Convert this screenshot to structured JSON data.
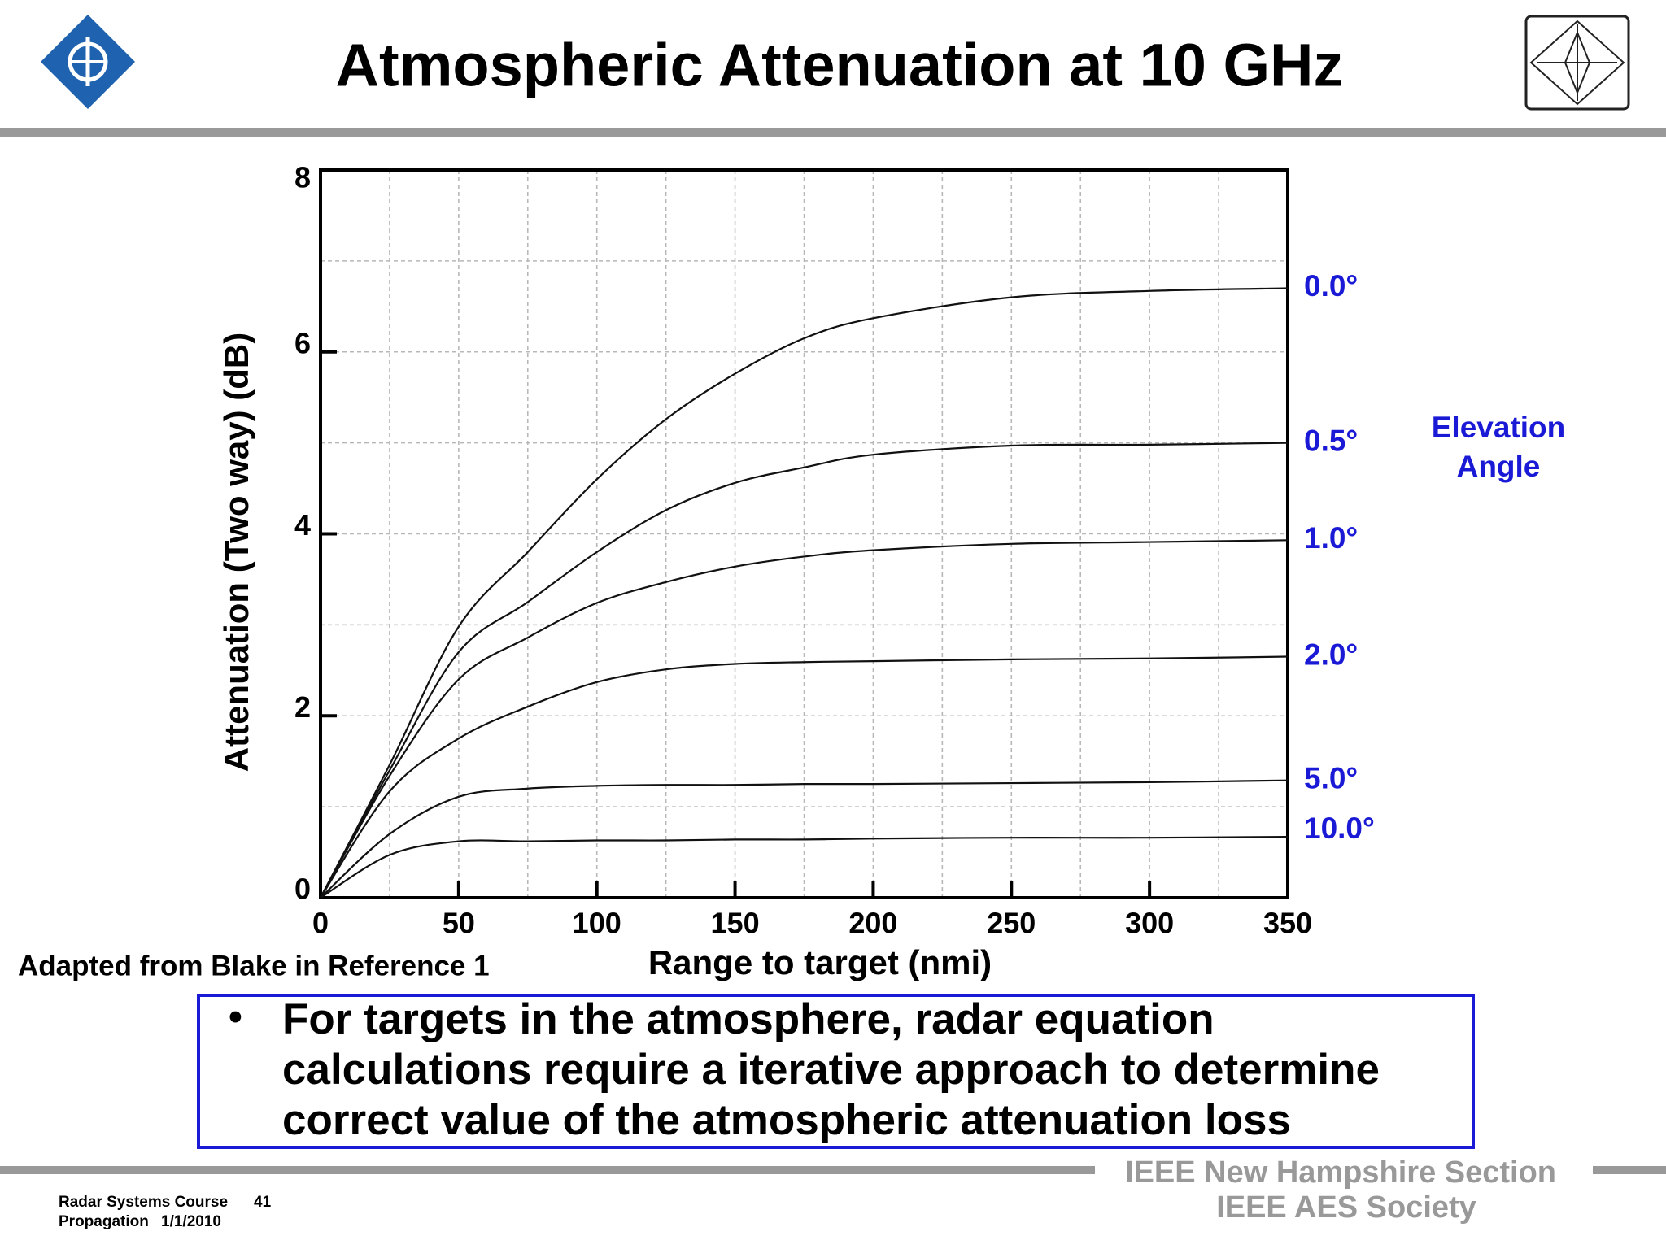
{
  "header": {
    "title": "Atmospheric Attenuation at 10 GHz"
  },
  "chart_data": {
    "type": "line",
    "x_label": "Range to target (nmi)",
    "y_label": "Attenuation (Two way) (dB)",
    "legend_title": [
      "Elevation",
      "Angle"
    ],
    "label_color": "#1a1ad6",
    "x": [
      0,
      25,
      50,
      75,
      100,
      125,
      150,
      175,
      200,
      250,
      300,
      350
    ],
    "series": [
      {
        "name": "0.0°",
        "color": "#111111",
        "values": [
          0,
          1.46,
          2.98,
          3.8,
          4.6,
          5.26,
          5.76,
          6.15,
          6.37,
          6.6,
          6.67,
          6.7
        ]
      },
      {
        "name": "0.5°",
        "color": "#111111",
        "values": [
          0,
          1.4,
          2.7,
          3.25,
          3.8,
          4.26,
          4.56,
          4.73,
          4.87,
          4.97,
          4.98,
          5.0
        ]
      },
      {
        "name": "1.0°",
        "color": "#111111",
        "values": [
          0,
          1.34,
          2.4,
          2.86,
          3.24,
          3.47,
          3.64,
          3.75,
          3.82,
          3.89,
          3.91,
          3.93
        ]
      },
      {
        "name": "2.0°",
        "color": "#111111",
        "values": [
          0,
          1.17,
          1.75,
          2.1,
          2.37,
          2.51,
          2.57,
          2.59,
          2.6,
          2.62,
          2.63,
          2.65
        ]
      },
      {
        "name": "5.0°",
        "color": "#111111",
        "values": [
          0,
          0.7,
          1.11,
          1.2,
          1.23,
          1.24,
          1.24,
          1.25,
          1.25,
          1.26,
          1.27,
          1.29
        ]
      },
      {
        "name": "10.0°",
        "color": "#111111",
        "values": [
          0,
          0.47,
          0.62,
          0.62,
          0.63,
          0.63,
          0.64,
          0.64,
          0.65,
          0.66,
          0.66,
          0.67
        ]
      }
    ],
    "xlim": [
      0,
      350
    ],
    "xticks": [
      0,
      50,
      100,
      150,
      200,
      250,
      300,
      350
    ],
    "x_minor_ticks": [
      25,
      75,
      125,
      175,
      225,
      275,
      325
    ],
    "ylim": [
      0,
      8
    ],
    "yticks": [
      0,
      2,
      4,
      6,
      8
    ],
    "y_minor_ticks": [
      1,
      3,
      5,
      7
    ],
    "grid": true
  },
  "source_note": "Adapted from Blake in Reference 1",
  "bullet": {
    "lines": [
      "For targets in the atmosphere, radar equation",
      "calculations require a iterative approach to determine",
      "correct value of the atmospheric attenuation loss"
    ]
  },
  "footer": {
    "course": "Radar Systems Course",
    "page": "41",
    "topic": "Propagation",
    "date": "1/1/2010",
    "org": [
      "IEEE New Hampshire Section",
      "IEEE AES Society"
    ]
  }
}
